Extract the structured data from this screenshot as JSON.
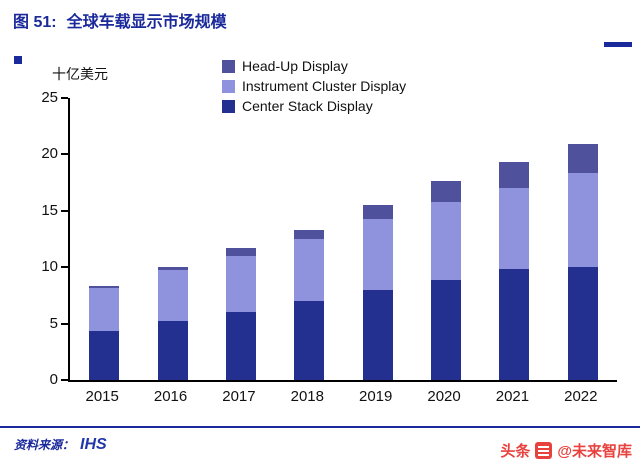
{
  "header": {
    "figure_label": "图 51:",
    "title": "全球车载显示市场规模"
  },
  "colors": {
    "accent_navy": "#1b2a9b",
    "watermark_red": "#e8423e"
  },
  "chart_data": {
    "type": "bar",
    "stacked": true,
    "title": "全球车载显示市场规模",
    "unit_label": "十亿美元",
    "categories": [
      "2015",
      "2016",
      "2017",
      "2018",
      "2019",
      "2020",
      "2021",
      "2022"
    ],
    "series": [
      {
        "name": "Center Stack Display",
        "color": "#23308f",
        "values": [
          4.3,
          5.2,
          6.0,
          7.0,
          8.0,
          8.9,
          9.8,
          10.0
        ]
      },
      {
        "name": "Instrument Cluster Display",
        "color": "#8f93de",
        "values": [
          3.8,
          4.5,
          5.0,
          5.5,
          6.3,
          6.9,
          7.2,
          8.3
        ]
      },
      {
        "name": "Head-Up Display",
        "color": "#4f519c",
        "values": [
          0.2,
          0.3,
          0.7,
          0.8,
          1.2,
          1.9,
          2.3,
          2.6
        ]
      }
    ],
    "legend_order": [
      "Head-Up Display",
      "Instrument Cluster Display",
      "Center Stack Display"
    ],
    "ylim": [
      0,
      25
    ],
    "yticks": [
      0,
      5,
      10,
      15,
      20,
      25
    ],
    "grid": false,
    "legend_position": "top-center"
  },
  "footer": {
    "source_label": "资料来源：",
    "source_value": "IHS"
  },
  "watermark": {
    "brand": "头条",
    "handle": "@未来智库"
  }
}
